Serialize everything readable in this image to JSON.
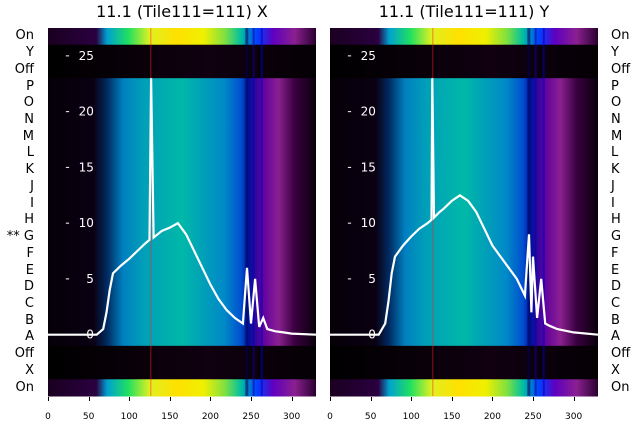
{
  "chart_data": [
    {
      "type": "heatmap",
      "title": "11.1 (Tile111=111) X",
      "row_labels_top_to_bottom": [
        "On",
        "Y",
        "Off",
        "P",
        "O",
        "N",
        "M",
        "L",
        "K",
        "J",
        "I",
        "H",
        "G",
        "F",
        "E",
        "D",
        "C",
        "B",
        "A",
        "Off",
        "X",
        "On"
      ],
      "highlight_row": {
        "label": "G",
        "marker": "**"
      },
      "x_ticks": [
        0,
        50,
        100,
        150,
        200,
        250,
        300
      ],
      "xlim": [
        0,
        330
      ],
      "overlay_y_ticks": [
        0,
        5,
        10,
        15,
        20,
        25
      ],
      "overlay_ylim": [
        -5.5,
        27.5
      ],
      "overlay_line": {
        "color": "#ffffff",
        "x": [
          0,
          60,
          68,
          72,
          76,
          80,
          90,
          100,
          110,
          120,
          125,
          127,
          130,
          135,
          140,
          150,
          160,
          170,
          180,
          190,
          200,
          210,
          220,
          230,
          240,
          245,
          250,
          255,
          260,
          265,
          270,
          280,
          290,
          300,
          330
        ],
        "y": [
          0,
          0,
          0.5,
          2,
          4,
          5.5,
          6.2,
          6.8,
          7.5,
          8.2,
          8.5,
          23,
          8.7,
          9,
          9.3,
          9.6,
          10,
          9,
          7.5,
          6,
          4.5,
          3.2,
          2.2,
          1.5,
          1,
          6,
          1,
          5,
          0.7,
          1.5,
          0.5,
          0.3,
          0.2,
          0.1,
          0
        ]
      }
    },
    {
      "type": "heatmap",
      "title": "11.1 (Tile111=111) Y",
      "row_labels_top_to_bottom": [
        "On",
        "Y",
        "Off",
        "P",
        "O",
        "N",
        "M",
        "L",
        "K",
        "J",
        "I",
        "H",
        "G",
        "F",
        "E",
        "D",
        "C",
        "B",
        "A",
        "Off",
        "X",
        "On"
      ],
      "x_ticks": [
        0,
        50,
        100,
        150,
        200,
        250,
        300
      ],
      "xlim": [
        0,
        330
      ],
      "overlay_y_ticks": [
        0,
        5,
        10,
        15,
        20,
        25
      ],
      "overlay_ylim": [
        -5.5,
        27.5
      ],
      "overlay_line": {
        "color": "#ffffff",
        "x": [
          0,
          60,
          68,
          72,
          76,
          80,
          90,
          100,
          110,
          120,
          125,
          126,
          128,
          135,
          140,
          150,
          160,
          170,
          180,
          190,
          200,
          210,
          220,
          230,
          240,
          245,
          248,
          250,
          255,
          260,
          265,
          270,
          280,
          300,
          330
        ],
        "y": [
          0,
          0,
          1,
          3,
          5.5,
          7,
          8,
          8.8,
          9.5,
          10,
          10.3,
          23,
          10.5,
          11,
          11.3,
          12,
          12.5,
          12,
          11,
          9.5,
          8,
          7,
          6,
          5,
          3.5,
          9,
          2,
          7,
          1.5,
          5,
          1,
          0.8,
          0.5,
          0.2,
          0
        ]
      }
    }
  ]
}
